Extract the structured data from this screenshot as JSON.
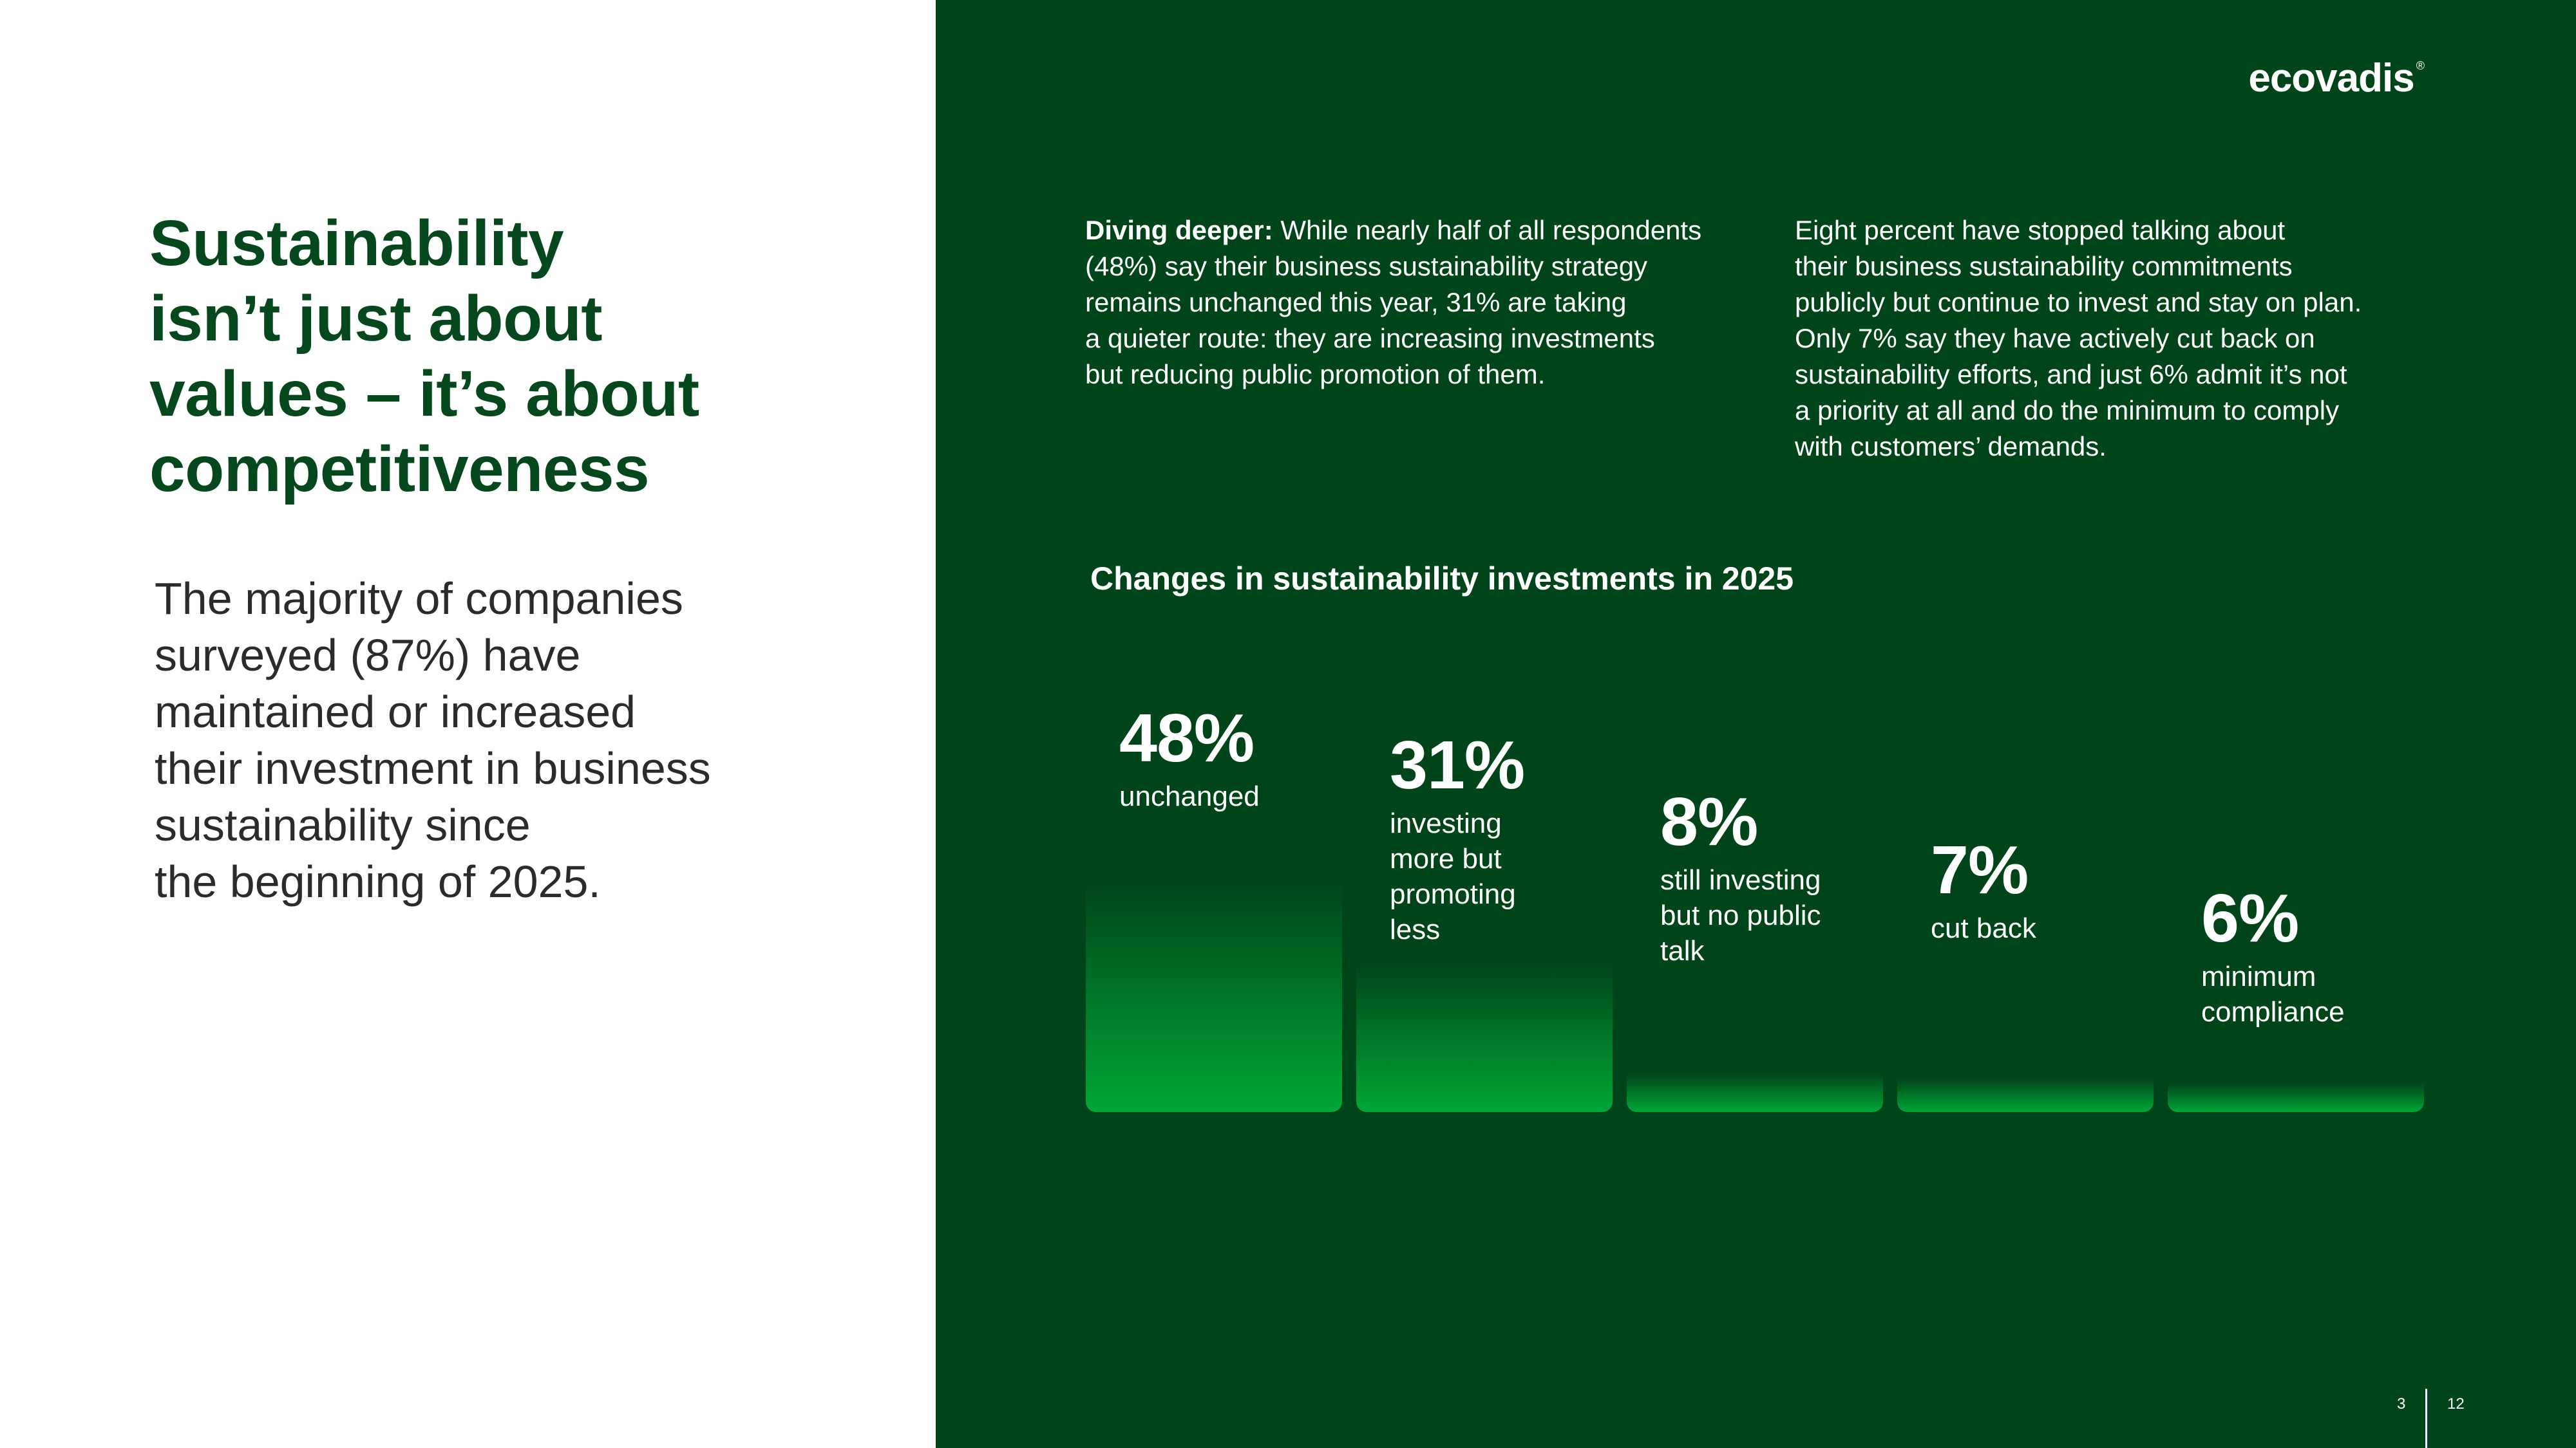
{
  "headline": [
    "Sustainability",
    "isn’t just about",
    "values – it’s about",
    "competitiveness"
  ],
  "intro": [
    "The majority of companies",
    "surveyed (87%) have",
    "maintained or increased",
    "their investment in business",
    "sustainability since",
    "the beginning of 2025."
  ],
  "brand": {
    "logo": "ecovadis",
    "registered": "®"
  },
  "paragraph_1": {
    "lead": "Diving deeper:",
    "line_1_rest": " While nearly half of all respondents",
    "lines": [
      "(48%) say their business sustainability strategy",
      "remains unchanged this year, 31% are taking",
      "a quieter route: they are increasing investments",
      "but reducing public promotion of them."
    ]
  },
  "paragraph_2": {
    "lines": [
      "Eight percent have stopped talking about",
      "their business sustainability commitments",
      "publicly but continue to invest and stay on plan.",
      "Only 7% say they have actively cut back on",
      "sustainability efforts, and just 6% admit it’s not",
      "a priority at all and do the minimum to comply",
      "with customers’ demands."
    ]
  },
  "chart_data": {
    "type": "bar",
    "title": "Changes in sustainability investments in 2025",
    "xlabel": "",
    "ylabel": "",
    "ylim": [
      0,
      48
    ],
    "grid": false,
    "legend": "none",
    "categories": [
      "unchanged",
      "investing more but promoting less",
      "still investing but no public talk",
      "cut back",
      "minimum compliance"
    ],
    "values": [
      48,
      31,
      8,
      7,
      6
    ],
    "value_labels": [
      "48%",
      "31%",
      "8%",
      "7%",
      "6%"
    ],
    "label_lines": [
      [
        "unchanged"
      ],
      [
        "investing",
        "more but",
        "promoting",
        "less"
      ],
      [
        "still investing",
        "but no public",
        "talk"
      ],
      [
        "cut back"
      ],
      [
        "minimum",
        "compliance"
      ]
    ],
    "colors": {
      "bar_top": "#00451a",
      "bar_bottom": "#00a736",
      "background": "#00451a",
      "text": "#ffffff"
    }
  },
  "page": {
    "current": "3",
    "total": "12"
  },
  "colors": {
    "accent_green": "#05481d",
    "panel_green": "#00451a",
    "text_dark": "#2b2b2b"
  }
}
